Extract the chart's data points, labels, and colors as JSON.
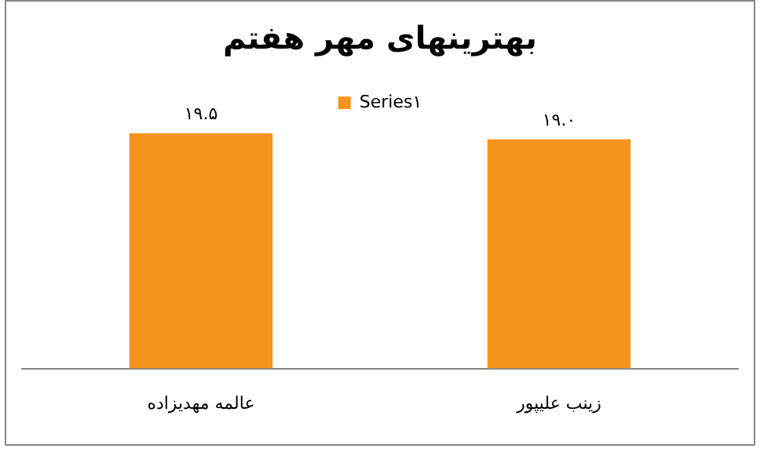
{
  "chart_data": {
    "type": "bar",
    "title": "بهترینهای مهر هفتم",
    "categories": [
      "عالمه مهدیزاده",
      "زینب علیپور"
    ],
    "series": [
      {
        "name": "Series۱",
        "color": "#f7941d",
        "values": [
          19.5,
          19.0
        ],
        "value_labels": [
          "۱۹.۵",
          "۱۹.۰"
        ]
      }
    ],
    "tick_labels": "x",
    "grid": false,
    "legend": "top"
  }
}
